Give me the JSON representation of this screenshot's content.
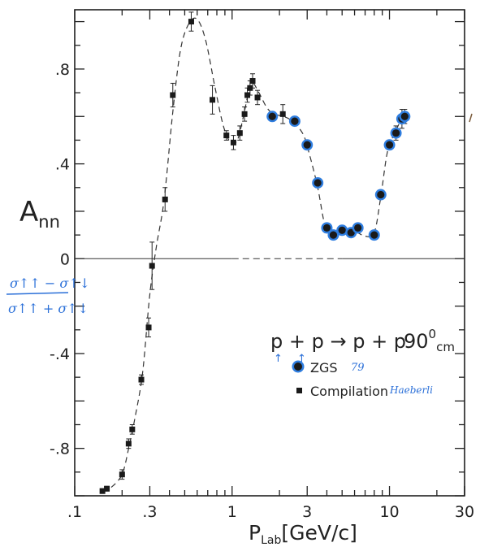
{
  "chart_data": {
    "type": "scatter",
    "x_scale": "log",
    "xlim": [
      0.1,
      30
    ],
    "ylim": [
      -1.0,
      1.05
    ],
    "grid": false,
    "x_ticks": [
      {
        "value": 0.1,
        "label": ".1"
      },
      {
        "value": 0.3,
        "label": ".3"
      },
      {
        "value": 1,
        "label": "1"
      },
      {
        "value": 3,
        "label": "3"
      },
      {
        "value": 10,
        "label": "10"
      },
      {
        "value": 30,
        "label": "30"
      }
    ],
    "y_ticks": [
      {
        "value": 0.8,
        "label": ".8"
      },
      {
        "value": 0.4,
        "label": ".4"
      },
      {
        "value": 0,
        "label": "0"
      },
      {
        "value": -0.4,
        "label": "-.4"
      },
      {
        "value": -0.8,
        "label": "-.8"
      }
    ],
    "xlabel": "P",
    "xlabel_sub": "Lab",
    "xlabel_unit": "[GeV/c]",
    "ylabel": "A",
    "ylabel_sub": "nn",
    "ylabel_hand": {
      "numerator": "σ↑↑ − σ↑↓",
      "denominator": "σ↑↑ + σ↑↓"
    },
    "reaction_label": "p + p → p + p",
    "reaction_angle": "90",
    "reaction_angle_sup": "0",
    "reaction_angle_sub": "cm",
    "legend_placement": "lower-right",
    "series": [
      {
        "name": "ZGS",
        "annotation": "79",
        "marker": "circle",
        "color": "#1a1a1a",
        "halo_color": "#2f7ee0",
        "points": [
          {
            "x": 1.8,
            "y": 0.6,
            "err": 0.02
          },
          {
            "x": 2.5,
            "y": 0.58,
            "err": 0.02
          },
          {
            "x": 3.0,
            "y": 0.48,
            "err": 0.02
          },
          {
            "x": 3.5,
            "y": 0.32,
            "err": 0.02
          },
          {
            "x": 4.0,
            "y": 0.13,
            "err": 0.02
          },
          {
            "x": 4.4,
            "y": 0.1,
            "err": 0.02
          },
          {
            "x": 5.0,
            "y": 0.12,
            "err": 0.02
          },
          {
            "x": 5.7,
            "y": 0.11,
            "err": 0.02
          },
          {
            "x": 6.3,
            "y": 0.13,
            "err": 0.02
          },
          {
            "x": 8.0,
            "y": 0.1,
            "err": 0.02
          },
          {
            "x": 8.8,
            "y": 0.27,
            "err": 0.02
          },
          {
            "x": 10.0,
            "y": 0.48,
            "err": 0.02
          },
          {
            "x": 11.0,
            "y": 0.53,
            "err": 0.03
          },
          {
            "x": 12.0,
            "y": 0.59,
            "err": 0.04
          },
          {
            "x": 12.5,
            "y": 0.6,
            "err": 0.03
          }
        ]
      },
      {
        "name": "Compilation",
        "annotation": "Haeberli",
        "marker": "square",
        "color": "#1a1a1a",
        "points": [
          {
            "x": 0.15,
            "y": -0.98,
            "err": 0.01
          },
          {
            "x": 0.16,
            "y": -0.97,
            "err": 0.01
          },
          {
            "x": 0.2,
            "y": -0.91,
            "err": 0.02
          },
          {
            "x": 0.22,
            "y": -0.78,
            "err": 0.02
          },
          {
            "x": 0.232,
            "y": -0.72,
            "err": 0.02
          },
          {
            "x": 0.265,
            "y": -0.51,
            "err": 0.02
          },
          {
            "x": 0.295,
            "y": -0.29,
            "err": 0.04
          },
          {
            "x": 0.31,
            "y": -0.03,
            "err": 0.1
          },
          {
            "x": 0.375,
            "y": 0.25,
            "err": 0.05
          },
          {
            "x": 0.42,
            "y": 0.69,
            "err": 0.05
          },
          {
            "x": 0.55,
            "y": 1.0,
            "err": 0.04
          },
          {
            "x": 0.75,
            "y": 0.67,
            "err": 0.06
          },
          {
            "x": 0.92,
            "y": 0.52,
            "err": 0.02
          },
          {
            "x": 1.02,
            "y": 0.49,
            "err": 0.03
          },
          {
            "x": 1.12,
            "y": 0.53,
            "err": 0.03
          },
          {
            "x": 1.2,
            "y": 0.61,
            "err": 0.03
          },
          {
            "x": 1.25,
            "y": 0.69,
            "err": 0.03
          },
          {
            "x": 1.3,
            "y": 0.72,
            "err": 0.03
          },
          {
            "x": 1.35,
            "y": 0.75,
            "err": 0.03
          },
          {
            "x": 1.45,
            "y": 0.68,
            "err": 0.03
          },
          {
            "x": 2.1,
            "y": 0.61,
            "err": 0.04
          }
        ]
      }
    ],
    "curve": [
      [
        0.15,
        -0.98
      ],
      [
        0.17,
        -0.965
      ],
      [
        0.2,
        -0.91
      ],
      [
        0.22,
        -0.8
      ],
      [
        0.24,
        -0.68
      ],
      [
        0.27,
        -0.48
      ],
      [
        0.3,
        -0.15
      ],
      [
        0.33,
        0.05
      ],
      [
        0.37,
        0.25
      ],
      [
        0.42,
        0.62
      ],
      [
        0.47,
        0.88
      ],
      [
        0.53,
        0.99
      ],
      [
        0.6,
        1.01
      ],
      [
        0.68,
        0.92
      ],
      [
        0.78,
        0.72
      ],
      [
        0.88,
        0.56
      ],
      [
        0.98,
        0.49
      ],
      [
        1.08,
        0.5
      ],
      [
        1.18,
        0.6
      ],
      [
        1.28,
        0.71
      ],
      [
        1.36,
        0.74
      ],
      [
        1.48,
        0.7
      ],
      [
        1.75,
        0.62
      ],
      [
        2.3,
        0.59
      ],
      [
        2.8,
        0.53
      ],
      [
        3.1,
        0.44
      ],
      [
        3.5,
        0.3
      ],
      [
        3.9,
        0.14
      ],
      [
        4.4,
        0.105
      ],
      [
        5.0,
        0.115
      ],
      [
        6.0,
        0.115
      ],
      [
        7.0,
        0.095
      ],
      [
        8.0,
        0.11
      ],
      [
        8.8,
        0.26
      ],
      [
        9.7,
        0.45
      ],
      [
        10.8,
        0.53
      ],
      [
        12.0,
        0.59
      ],
      [
        12.8,
        0.6
      ]
    ]
  }
}
